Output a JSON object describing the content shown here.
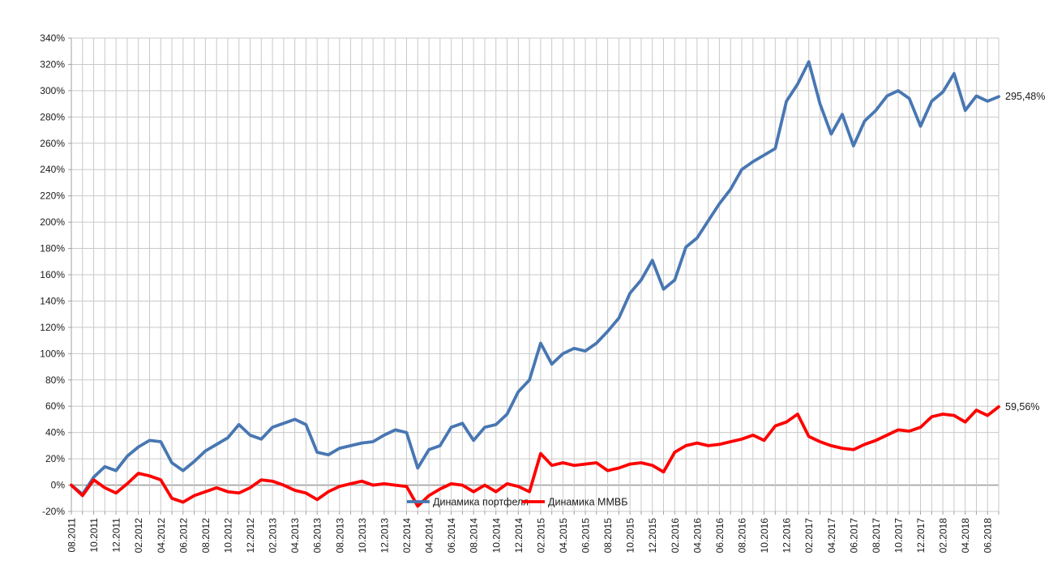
{
  "chart_data": {
    "type": "line",
    "title": "",
    "xlabel": "",
    "ylabel": "",
    "ylim": [
      -20,
      340
    ],
    "y_tick_step": 20,
    "y_tick_suffix": "%",
    "grid": "both",
    "legend_position": "bottom-inside",
    "x_tick_labels": [
      "08.2011",
      "10.2011",
      "12.2011",
      "02.2012",
      "04.2012",
      "06.2012",
      "08.2012",
      "10.2012",
      "12.2012",
      "02.2013",
      "04.2013",
      "06.2013",
      "08.2013",
      "10.2013",
      "12.2013",
      "02.2014",
      "04.2014",
      "06.2014",
      "08.2014",
      "10.2014",
      "12.2014",
      "02.2015",
      "04.2015",
      "06.2015",
      "08.2015",
      "10.2015",
      "12.2015",
      "02.2016",
      "04.2016",
      "06.2016",
      "08.2016",
      "10.2016",
      "12.2016",
      "02.2017",
      "04.2017",
      "06.2017",
      "08.2017",
      "10.2017",
      "12.2017",
      "02.2018",
      "04.2018",
      "06.2018"
    ],
    "x_unit": "month",
    "x_start": "08.2011",
    "series": [
      {
        "name": "Динамика портфеля",
        "color": "#4877b2",
        "end_label": "295,48%",
        "final_value": 295.48,
        "values": [
          0,
          -7,
          6,
          14,
          11,
          22,
          29,
          34,
          33,
          17,
          11,
          18,
          26,
          31,
          36,
          46,
          38,
          35,
          44,
          47,
          50,
          46,
          25,
          23,
          28,
          30,
          32,
          33,
          38,
          42,
          40,
          13,
          27,
          30,
          44,
          47,
          34,
          44,
          46,
          54,
          71,
          80,
          108,
          92,
          100,
          104,
          102,
          108,
          117,
          127,
          146,
          156,
          171,
          149,
          156,
          181,
          188,
          201,
          214,
          225,
          240,
          246,
          251,
          256,
          292,
          305,
          322,
          290,
          267,
          282,
          258,
          277,
          285,
          296,
          300,
          294,
          273,
          292,
          299,
          313,
          285,
          296,
          292,
          295.48
        ]
      },
      {
        "name": "Динамика ММВБ",
        "color": "#fe0000",
        "end_label": "59,56%",
        "final_value": 59.56,
        "values": [
          0,
          -8,
          4,
          -2,
          -6,
          1,
          9,
          7,
          4,
          -10,
          -13,
          -8,
          -5,
          -2,
          -5,
          -6,
          -2,
          4,
          3,
          0,
          -4,
          -6,
          -11,
          -5,
          -1,
          1,
          3,
          0,
          1,
          0,
          -1,
          -16,
          -8,
          -3,
          1,
          0,
          -5,
          0,
          -5,
          1,
          -1,
          -5,
          24,
          15,
          17,
          15,
          16,
          17,
          11,
          13,
          16,
          17,
          15,
          10,
          25,
          30,
          32,
          30,
          31,
          33,
          35,
          38,
          34,
          45,
          48,
          54,
          37,
          33,
          30,
          28,
          27,
          31,
          34,
          38,
          42,
          41,
          44,
          52,
          54,
          53,
          48,
          57,
          53,
          59.56
        ]
      }
    ],
    "colors": {
      "grid": "#c9c9c9",
      "zero_line": "#a0a0a0",
      "axis_text": "#1a1a1a",
      "background": "#ffffff"
    }
  }
}
